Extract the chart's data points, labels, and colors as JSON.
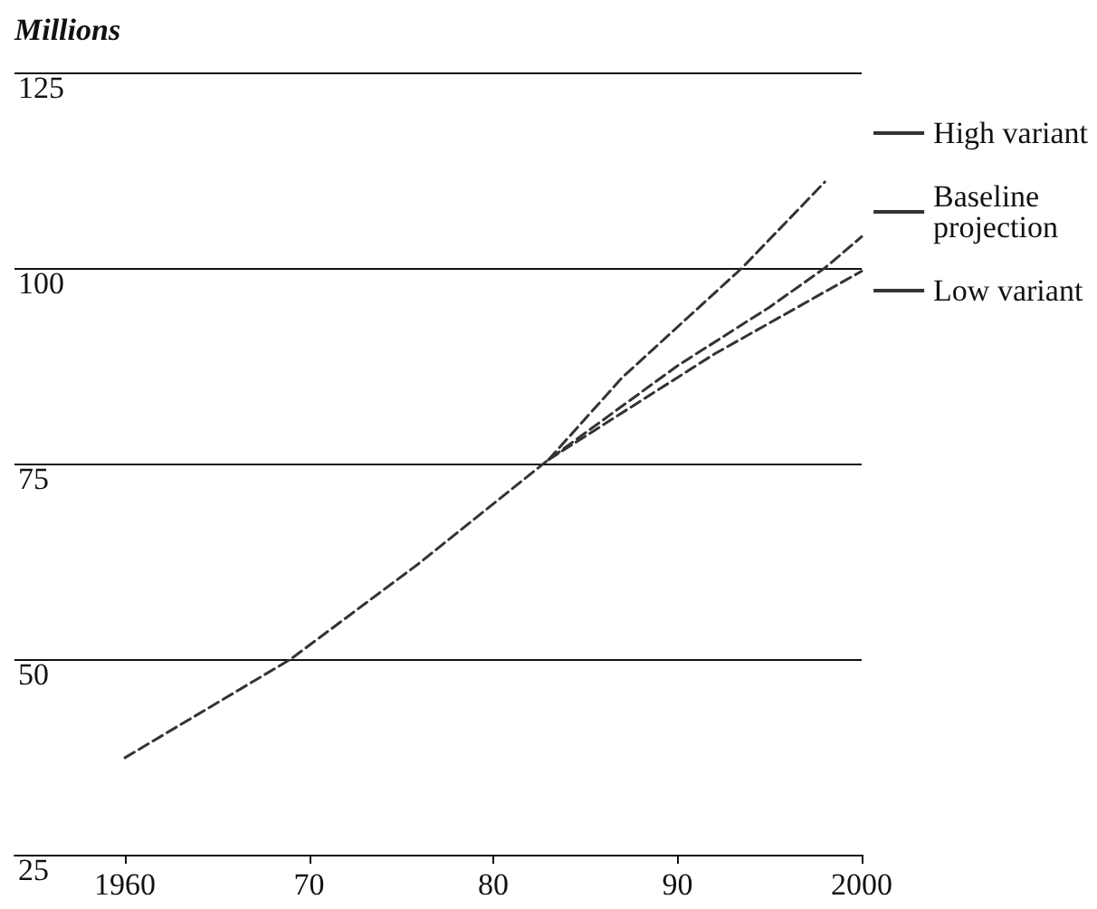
{
  "chart_data": {
    "type": "line",
    "ylabel": "Millions",
    "xlim": [
      1954,
      2000
    ],
    "xticks": [
      1960,
      {
        "value": 1970,
        "label": "70"
      },
      {
        "value": 1980,
        "label": "80"
      },
      {
        "value": 1990,
        "label": "90"
      },
      2000
    ],
    "ylim": [
      25,
      125
    ],
    "yticks": [
      25,
      50,
      75,
      100,
      125
    ],
    "grid": "y",
    "legend": "right",
    "line_style": "dashed",
    "marker": "none",
    "series": [
      {
        "name": "High variant",
        "color": "#333333",
        "x": [
          1983,
          1987,
          1993.5,
          1998
        ],
        "values": [
          75.5,
          86,
          100,
          111
        ]
      },
      {
        "name": "Baseline projection",
        "color": "#333333",
        "x": [
          1960,
          1969,
          1976,
          1983,
          1990,
          1995,
          1998,
          2000
        ],
        "values": [
          37.4,
          50,
          62.3,
          75.5,
          87.5,
          95,
          100,
          104
        ]
      },
      {
        "name": "Low variant",
        "color": "#333333",
        "x": [
          1983,
          1986,
          1992,
          2000
        ],
        "values": [
          75.5,
          80,
          89,
          99.6
        ]
      }
    ]
  }
}
